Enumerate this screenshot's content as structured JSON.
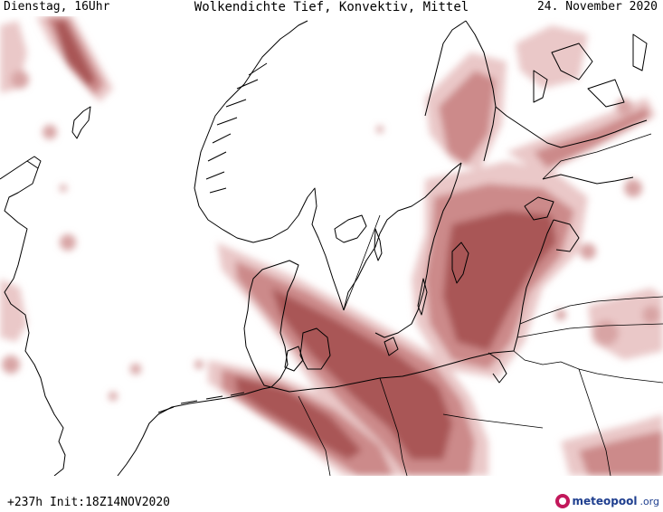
{
  "header": {
    "day_time": "Dienstag, 16Uhr",
    "title": "Wolkendichte  Tief, Konvektiv, Mittel",
    "date": "24. November 2020"
  },
  "footer": {
    "run_info": "+237h  Init:18Z14NOV2020"
  },
  "logo": {
    "brand": "meteopool",
    "tld": ".org",
    "icon": "meteopool-logo-icon"
  },
  "colors": {
    "cloud_light": "#e9c6c6",
    "cloud_mid": "#c98383",
    "cloud_dark": "#a55050",
    "coastline": "#000000",
    "background": "#ffffff"
  }
}
